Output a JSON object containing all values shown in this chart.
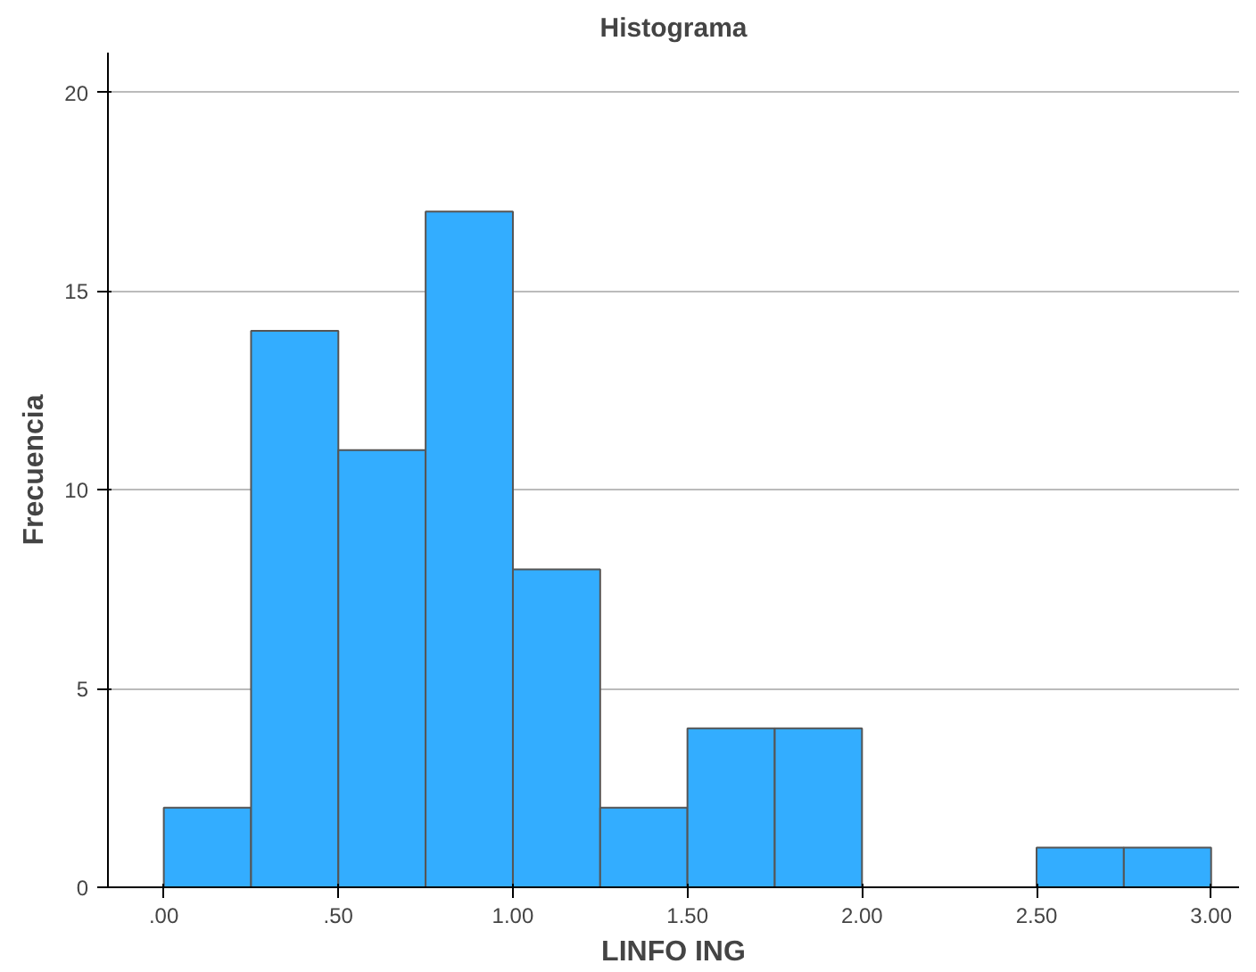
{
  "chart_data": {
    "type": "histogram",
    "title": "Histograma",
    "xlabel": "LINFO ING",
    "ylabel": "Frecuencia",
    "bins": [
      0,
      0.25,
      0.5,
      0.75,
      1.0,
      1.25,
      1.5,
      1.75,
      2.0,
      2.25,
      2.5,
      2.75,
      3.0
    ],
    "values": [
      2,
      14,
      11,
      17,
      8,
      2,
      4,
      4,
      0,
      0,
      1,
      1
    ],
    "color": "#33adff",
    "xlim": [
      -0.16,
      3.08
    ],
    "ylim": [
      0,
      21
    ],
    "xticks": [
      {
        "value": 0,
        "label": ".00"
      },
      {
        "value": 0.5,
        "label": ".50"
      },
      {
        "value": 1.0,
        "label": "1.00"
      },
      {
        "value": 1.5,
        "label": "1.50"
      },
      {
        "value": 2.0,
        "label": "2.00"
      },
      {
        "value": 2.5,
        "label": "2.50"
      },
      {
        "value": 3.0,
        "label": "3.00"
      }
    ],
    "yticks": [
      0,
      5,
      10,
      15,
      20
    ],
    "grid": "y"
  }
}
